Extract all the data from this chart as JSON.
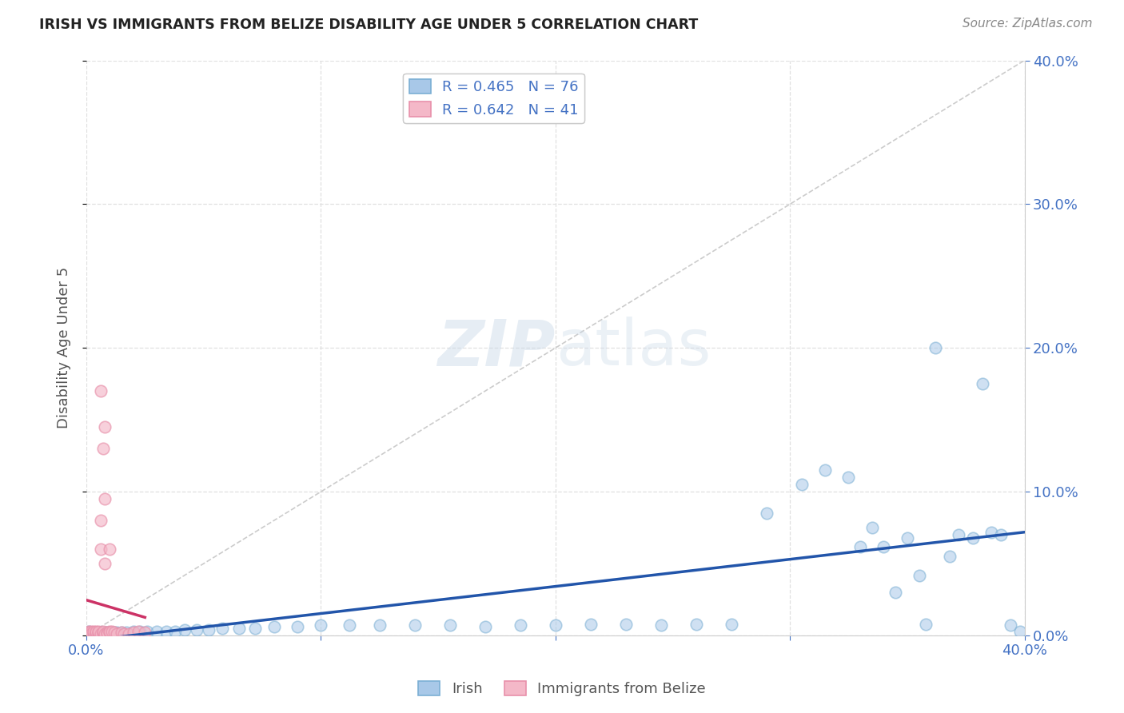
{
  "title": "IRISH VS IMMIGRANTS FROM BELIZE DISABILITY AGE UNDER 5 CORRELATION CHART",
  "source": "Source: ZipAtlas.com",
  "ylabel": "Disability Age Under 5",
  "xlim": [
    0.0,
    0.4
  ],
  "ylim": [
    0.0,
    0.4
  ],
  "grid_color": "#e0e0e0",
  "bg_color": "#ffffff",
  "blue_scatter_face": "#a8c8e8",
  "blue_scatter_edge": "#7bafd4",
  "pink_scatter_face": "#f4b8c8",
  "pink_scatter_edge": "#e890aa",
  "blue_line_color": "#2255aa",
  "pink_line_color": "#cc3366",
  "diag_line_color": "#cccccc",
  "right_tick_color": "#4472c4",
  "bottom_tick_color": "#4472c4",
  "label_color": "#4472c4",
  "R_blue": 0.465,
  "N_blue": 76,
  "R_pink": 0.642,
  "N_pink": 41,
  "watermark": "ZIPatlas",
  "legend_label_blue": "Irish",
  "legend_label_pink": "Immigrants from Belize",
  "irish_x": [
    0.001,
    0.001,
    0.001,
    0.002,
    0.002,
    0.002,
    0.003,
    0.003,
    0.003,
    0.004,
    0.004,
    0.004,
    0.005,
    0.005,
    0.005,
    0.006,
    0.006,
    0.006,
    0.007,
    0.007,
    0.008,
    0.008,
    0.009,
    0.01,
    0.011,
    0.012,
    0.013,
    0.015,
    0.017,
    0.02,
    0.023,
    0.026,
    0.03,
    0.034,
    0.038,
    0.042,
    0.047,
    0.052,
    0.058,
    0.065,
    0.072,
    0.08,
    0.09,
    0.1,
    0.112,
    0.125,
    0.14,
    0.155,
    0.17,
    0.185,
    0.2,
    0.215,
    0.23,
    0.245,
    0.26,
    0.275,
    0.29,
    0.305,
    0.315,
    0.325,
    0.33,
    0.335,
    0.34,
    0.345,
    0.35,
    0.355,
    0.358,
    0.362,
    0.368,
    0.372,
    0.378,
    0.382,
    0.386,
    0.39,
    0.394,
    0.398
  ],
  "irish_y": [
    0.002,
    0.001,
    0.003,
    0.001,
    0.002,
    0.001,
    0.002,
    0.001,
    0.002,
    0.001,
    0.002,
    0.001,
    0.002,
    0.001,
    0.002,
    0.001,
    0.002,
    0.001,
    0.002,
    0.001,
    0.002,
    0.001,
    0.002,
    0.002,
    0.002,
    0.002,
    0.002,
    0.002,
    0.002,
    0.003,
    0.003,
    0.003,
    0.003,
    0.003,
    0.003,
    0.004,
    0.004,
    0.004,
    0.005,
    0.005,
    0.005,
    0.006,
    0.006,
    0.007,
    0.007,
    0.007,
    0.007,
    0.007,
    0.006,
    0.007,
    0.007,
    0.008,
    0.008,
    0.007,
    0.008,
    0.008,
    0.085,
    0.105,
    0.115,
    0.11,
    0.062,
    0.075,
    0.062,
    0.03,
    0.068,
    0.042,
    0.008,
    0.2,
    0.055,
    0.07,
    0.068,
    0.175,
    0.072,
    0.07,
    0.007,
    0.003
  ],
  "belize_x": [
    0.001,
    0.001,
    0.001,
    0.002,
    0.002,
    0.002,
    0.003,
    0.003,
    0.003,
    0.004,
    0.004,
    0.004,
    0.005,
    0.005,
    0.005,
    0.006,
    0.006,
    0.006,
    0.006,
    0.007,
    0.007,
    0.007,
    0.007,
    0.008,
    0.008,
    0.008,
    0.008,
    0.009,
    0.009,
    0.01,
    0.01,
    0.01,
    0.011,
    0.012,
    0.013,
    0.015,
    0.016,
    0.018,
    0.02,
    0.022,
    0.025
  ],
  "belize_y": [
    0.001,
    0.002,
    0.003,
    0.002,
    0.003,
    0.001,
    0.001,
    0.002,
    0.003,
    0.001,
    0.002,
    0.003,
    0.001,
    0.002,
    0.003,
    0.06,
    0.08,
    0.001,
    0.17,
    0.001,
    0.002,
    0.13,
    0.003,
    0.05,
    0.095,
    0.001,
    0.145,
    0.002,
    0.001,
    0.06,
    0.002,
    0.003,
    0.003,
    0.002,
    0.001,
    0.002,
    0.001,
    0.001,
    0.002,
    0.003,
    0.002
  ]
}
